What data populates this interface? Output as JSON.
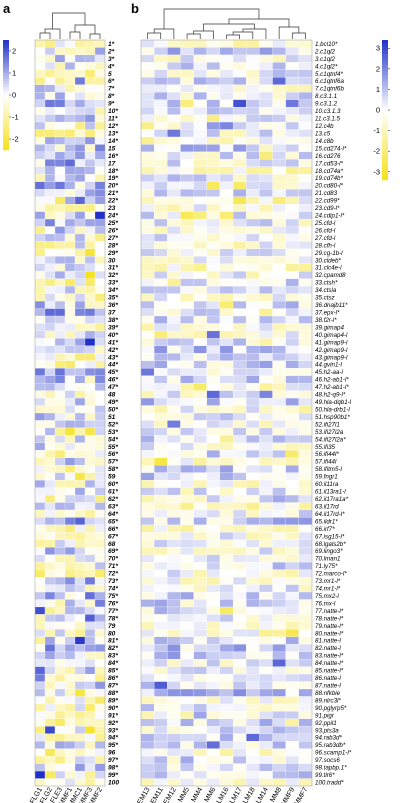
{
  "chart_data": [
    {
      "type": "heatmap",
      "panel_label": "a",
      "columns": [
        "FLG1",
        "FLG2",
        "FLE3",
        "MMF1",
        "MMC1",
        "MMF3",
        "MMF2"
      ],
      "rows": [
        "1*",
        "2*",
        "3*",
        "4*",
        "5",
        "6*",
        "7*",
        "8*",
        "9*",
        "10*",
        "11*",
        "12*",
        "13*",
        "14*",
        "15",
        "16*",
        "17",
        "18*",
        "19*",
        "20*",
        "21*",
        "22*",
        "23",
        "24*",
        "25*",
        "26*",
        "27*",
        "28*",
        "29*",
        "30",
        "31*",
        "32*",
        "33*",
        "34*",
        "35*",
        "36*",
        "37",
        "38*",
        "39*",
        "40*",
        "41*",
        "42*",
        "43*",
        "44*",
        "45*",
        "46*",
        "47*",
        "48",
        "49*",
        "50*",
        "51",
        "52*",
        "53*",
        "54*",
        "55*",
        "56*",
        "57*",
        "58*",
        "59",
        "60*",
        "61*",
        "62*",
        "63*",
        "64*",
        "65*",
        "66*",
        "67*",
        "68",
        "69*",
        "70*",
        "71*",
        "72*",
        "73*",
        "74*",
        "75*",
        "76*",
        "77*",
        "78*",
        "79",
        "80",
        "81*",
        "82*",
        "83*",
        "84*",
        "85*",
        "86*",
        "87*",
        "88*",
        "89*",
        "90*",
        "91*",
        "92*",
        "93*",
        "94*",
        "95*",
        "96",
        "97*",
        "98*",
        "99*",
        "100"
      ],
      "colorbar": {
        "ticks": [
          2,
          1,
          0,
          -1,
          -2
        ],
        "min": -2.5,
        "max": 2.5,
        "high_color": "#1f2fc8",
        "mid_color": "#ffffff",
        "low_color": "#f5e11a"
      },
      "value_seed": 11
    },
    {
      "type": "heatmap",
      "panel_label": "b",
      "columns": [
        "EM13",
        "EM11",
        "EM12",
        "MM5",
        "MM4",
        "MM6",
        "LM16",
        "LM17",
        "LM18",
        "LM14",
        "MM8",
        "MMF9",
        "MMF7"
      ],
      "rows": [
        "1.bcl10*",
        "2.c1ql2",
        "3.c1ql2",
        "4.c1ql2*",
        "5.c1qtnf4*",
        "6.c1qtnf6a",
        "7.c1qtnf6b",
        "8.c3.1.1",
        "9.c3.1.2",
        "10.c3.1.3",
        "11.c3.1.5",
        "12.c4b",
        "13.c5",
        "14.c8b",
        "15.cd274-l*",
        "16.cd276",
        "17.cd53-l*",
        "18.cd74a*",
        "19.cd74b*",
        "20.cd80-l*",
        "21.cd83",
        "22.cd99*",
        "23.cd9-l*",
        "24.cdip1-l*",
        "25.cfd-l",
        "26.cfd-l",
        "27.cfd-l",
        "28.cfh-l",
        "29.cg-1b-l",
        "30.cldeb*",
        "31.clc4e-l",
        "32.cpamd8",
        "33.ctsh*",
        "34.ctsla",
        "35.ctsz",
        "36.dnajb11*",
        "37.epx-l*",
        "38.f2r-l*",
        "39.gimap4",
        "40.gimap4-l",
        "41.gimap9-l",
        "42.gimap9-l",
        "43.gimap9-l",
        "44.gvin1-l",
        "45.h2-aa-l",
        "46.h2-ab1-l*",
        "47.h2-ab1-l*",
        "48.h2-q9-l*",
        "49.hla-dqb1-l",
        "50.hla-drb1-l",
        "51.hsp90b1*",
        "52.ifi27l1",
        "53.ifi27l2a",
        "54.ifi27l2a*",
        "55.ifi35",
        "56.ifi44l*",
        "57.ifi44l",
        "58.ifitm5-l",
        "59.fngr1",
        "60.il11ra",
        "61.il13ra1-l",
        "62.il17ra1a*",
        "63.il17rd",
        "64.il17rd-l*",
        "65.ildr1*",
        "66.irf7*",
        "67.isg15-l*",
        "68.lgals2b*",
        "69.lingo3*",
        "70.lman1",
        "71.ly75*",
        "72.marco-l*",
        "73.mr1-l*",
        "74.mr1-l*",
        "75.mx2-l",
        "76.mx-l",
        "77.natte-l*",
        "78.natte-l*",
        "79.natte-l*",
        "80.natte-l*",
        "81.natte-l",
        "82.natte-l",
        "83.natte-l*",
        "84.natte-l*",
        "85.natte-l*",
        "86.natte-l",
        "87.natte-l",
        "88.nfkbie",
        "89.nlrc3l*",
        "90.pglyrp5*",
        "91.pigr",
        "92.ppil1",
        "93.pts3a",
        "94.rab3d*",
        "95.rab3db*",
        "96.scamp1-l*",
        "97.socs6",
        "98.tapbp.1*",
        "99.tlr6*",
        "100.tradd*"
      ],
      "colorbar": {
        "ticks": [
          3,
          2,
          1,
          0,
          -1,
          -2,
          -3
        ],
        "min": -3.4,
        "max": 3.4,
        "high_color": "#1f2fc8",
        "mid_color": "#ffffff",
        "low_color": "#f5e11a"
      },
      "value_seed": 29
    }
  ]
}
